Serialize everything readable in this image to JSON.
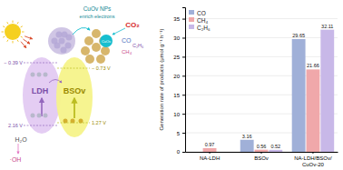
{
  "chart_data": {
    "type": "bar",
    "categories": [
      "NA-LDH",
      "BSOv",
      "NA-LDH/BSOv/CuOv-20"
    ],
    "series": [
      {
        "name": "CO",
        "color": "#a0b0d8",
        "values": [
          0.0,
          3.16,
          29.65
        ],
        "value_labels": [
          null,
          "3.16",
          "29.65"
        ]
      },
      {
        "name": "CH₄",
        "color": "#f0a8aa",
        "values": [
          0.97,
          0.56,
          21.66
        ]
      },
      {
        "name": "C₂H₆",
        "color": "#c8b8e8",
        "values": [
          0.0,
          0.52,
          32.11
        ],
        "value_labels": [
          null,
          "0.52",
          "32.11"
        ]
      }
    ],
    "ylabel": "Generation rate of products (μmol g⁻¹ h⁻¹)",
    "ylim": [
      0,
      38
    ],
    "yticks": [
      0,
      5,
      10,
      15,
      20,
      25,
      30,
      35
    ],
    "grid": true,
    "legend": "upper left",
    "data_labels": true,
    "annotations": [
      "LDH",
      "BSOv",
      "CuOv",
      "CuOv NPs",
      "enrich electrons",
      "CO₂",
      "CO",
      "C₂H₆",
      "CH₄",
      "− 0.39 V",
      "2.16 V",
      "− 0.73 V",
      "1.27 V",
      "H₂O",
      "·OH"
    ]
  }
}
